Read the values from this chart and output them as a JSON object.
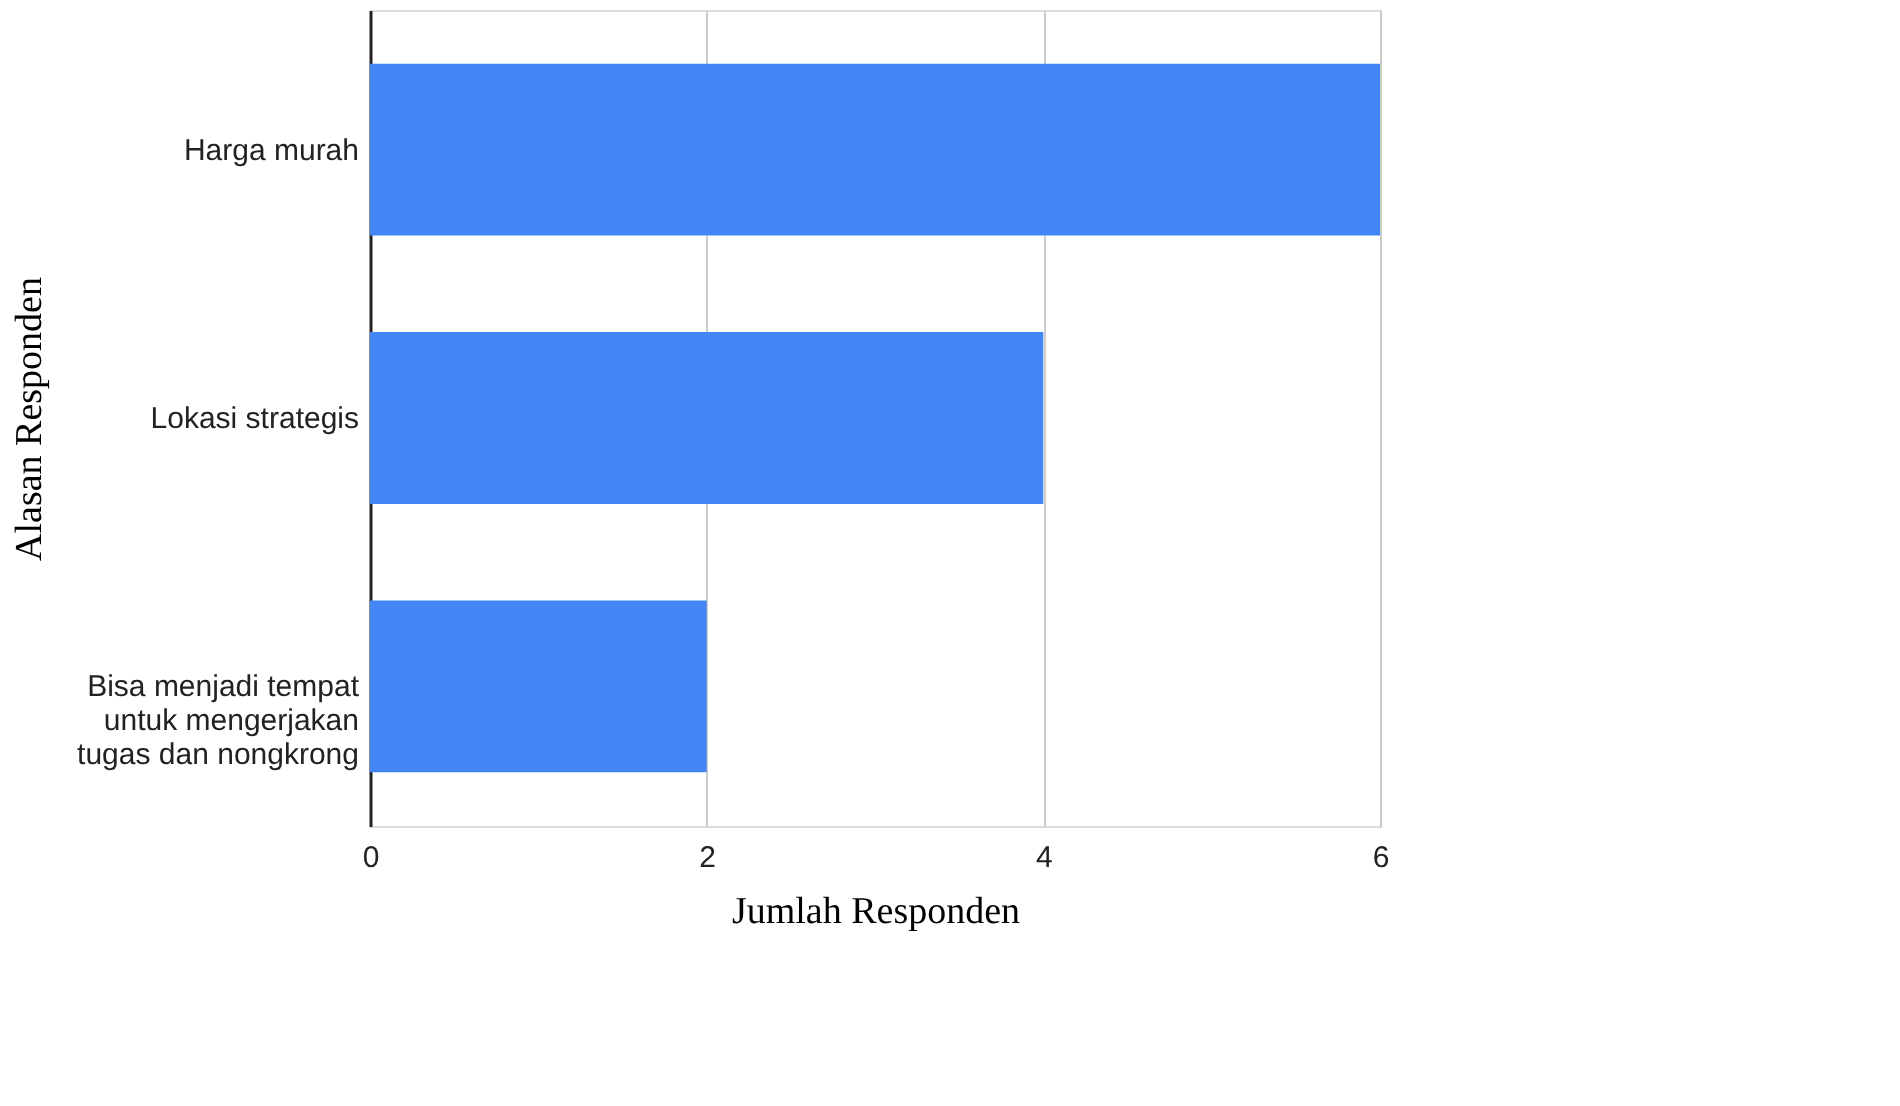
{
  "chart_data": {
    "type": "bar",
    "orientation": "horizontal",
    "xlabel": "Jumlah Responden",
    "ylabel": "Alasan Responden",
    "categories": [
      "Harga murah",
      "Lokasi strategis",
      "Bisa menjadi tempat untuk mengerjakan tugas dan nongkrong"
    ],
    "values": [
      6,
      4,
      2
    ],
    "color": "#4285f4",
    "xlim": [
      0,
      6
    ],
    "xticks": [
      0,
      2,
      4,
      6
    ],
    "grid": "x"
  }
}
